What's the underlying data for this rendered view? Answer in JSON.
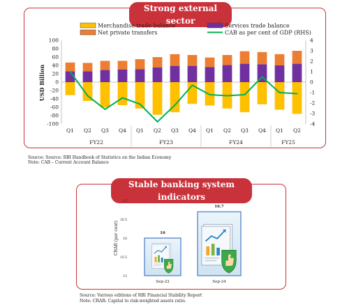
{
  "panel1": {
    "title": "Strong external sector",
    "source": "Source: Source: RBI Handbook of Statistics on the Indian Economy",
    "note": "Note: CAB – Current Account Balance"
  },
  "panel2": {
    "title": "Stable banking system indicators",
    "source": "Source: Various editions of RBI Financial Stability Report",
    "note": "Note: CRAR: Capital to risk-weighted assets ratio."
  },
  "chart_data": [
    {
      "type": "bar",
      "stacked": true,
      "title": "Strong external sector",
      "ylabel": "USD Billion",
      "ylabel_right": "",
      "ylim": [
        -100,
        100
      ],
      "y_ticks": [
        -100,
        -80,
        -60,
        -40,
        -20,
        0,
        20,
        40,
        60,
        80,
        100
      ],
      "y2lim": [
        -4,
        4
      ],
      "y2_ticks": [
        -4,
        -3,
        -2,
        -1,
        0,
        1,
        2,
        3,
        4
      ],
      "grid": false,
      "legend_position": "top",
      "categories": [
        "Q1",
        "Q2",
        "Q3",
        "Q4",
        "Q1",
        "Q2",
        "Q3",
        "Q4",
        "Q1",
        "Q2",
        "Q3",
        "Q4",
        "Q1",
        "Q2"
      ],
      "groups": [
        {
          "label": "FY22",
          "span": 4
        },
        {
          "label": "FY23",
          "span": 4
        },
        {
          "label": "FY24",
          "span": 4
        },
        {
          "label": "FY25",
          "span": 2
        }
      ],
      "series": [
        {
          "name": "Merchandise trade balance",
          "color": "#ffc000",
          "kind": "bar",
          "values": [
            -31,
            -45,
            -60,
            -55,
            -63,
            -78,
            -72,
            -52,
            -56,
            -63,
            -72,
            -53,
            -66,
            -76
          ]
        },
        {
          "name": "Services trade balance",
          "color": "#7030a0",
          "kind": "bar",
          "values": [
            26,
            26,
            29,
            30,
            31,
            35,
            39,
            39,
            36,
            41,
            44,
            43,
            40,
            44
          ]
        },
        {
          "name": "Net private transfers",
          "color": "#ed7d31",
          "kind": "bar",
          "values": [
            21,
            20,
            22,
            21,
            24,
            25,
            28,
            26,
            23,
            24,
            30,
            29,
            27,
            31
          ]
        },
        {
          "name": "CAB as per cent of GDP (RHS)",
          "color": "#00b050",
          "kind": "line",
          "axis": "right",
          "values": [
            1.0,
            -1.3,
            -2.6,
            -1.5,
            -2.1,
            -3.8,
            -2.2,
            -0.3,
            -1.2,
            -1.3,
            -1.2,
            0.5,
            -1.0,
            -1.1
          ]
        }
      ]
    },
    {
      "type": "bar",
      "title": "Stable banking system indicators",
      "ylabel": "CRAR (per cent)",
      "ylim": [
        15,
        17
      ],
      "y_ticks": [
        "15",
        "15.5",
        "16",
        "16.5",
        "17"
      ],
      "categories": [
        "Sep-22",
        "Sep-24"
      ],
      "values": [
        16,
        16.7
      ],
      "value_labels": [
        "16",
        "16.7"
      ]
    }
  ]
}
